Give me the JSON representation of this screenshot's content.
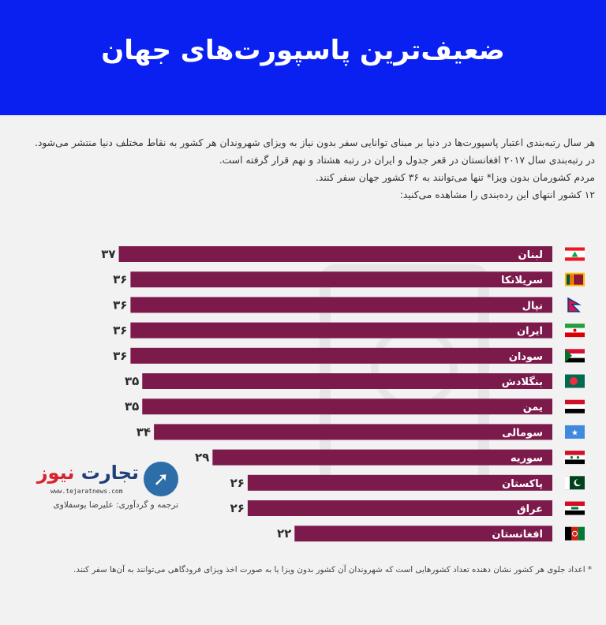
{
  "header": {
    "title": "ضعیف‌ترین پاسپورت‌های جهان",
    "color": "#0a20f0"
  },
  "intro": {
    "lines": [
      "هر سال رتبه‌بندی اعتبار پاسپورت‌ها در دنیا بر مبنای توانایی سفر بدون نیاز به ویزای شهروندان هر کشور به نقاط مختلف دنیا منتشر می‌شود.",
      "در  رتبه‌بندی سال ۲۰۱۷ افغانستان در قعر جدول و ایران در رتبه هشتاد و نهم قرار گرفته است.",
      "مردم کشورمان بدون ویزا* تنها می‌توانند به ۳۶ کشور جهان سفر کنند.",
      "۱۲ کشور انتهای این رده‌بندی را مشاهده می‌کنید:"
    ]
  },
  "chart_data": {
    "type": "bar",
    "orientation": "horizontal",
    "bar_color": "#7d1a4c",
    "categories": [
      "لبنان",
      "سریلانکا",
      "نپال",
      "ایران",
      "سودان",
      "بنگلادش",
      "یمن",
      "سومالی",
      "سوریه",
      "پاکستان",
      "عراق",
      "افغانستان"
    ],
    "values": [
      37,
      36,
      36,
      36,
      36,
      35,
      35,
      34,
      29,
      26,
      26,
      22
    ],
    "value_labels": [
      "۳۷",
      "۳۶",
      "۳۶",
      "۳۶",
      "۳۶",
      "۳۵",
      "۳۵",
      "۳۴",
      "۲۹",
      "۲۶",
      "۲۶",
      "۲۲"
    ],
    "flags": [
      "lebanon-flag",
      "sri-lanka-flag",
      "nepal-flag",
      "iran-flag",
      "sudan-flag",
      "bangladesh-flag",
      "yemen-flag",
      "somalia-flag",
      "syria-flag",
      "pakistan-flag",
      "iraq-flag",
      "afghanistan-flag"
    ]
  },
  "logo": {
    "name_main": "تجارت",
    "name_accent": "نیوز",
    "url": "www.tejaratnews.com",
    "icon": "arrow-circle-icon"
  },
  "credit": "ترجمه و گردآوری: علیرضا یوسفلاوی",
  "footnote": "* اعداد جلوی هر کشور نشان دهنده تعداد کشورهایی است که شهروندان آن کشور بدون ویزا یا به صورت اخذ ویزای فرودگاهی می‌توانند به آن‌ها سفر کنند."
}
